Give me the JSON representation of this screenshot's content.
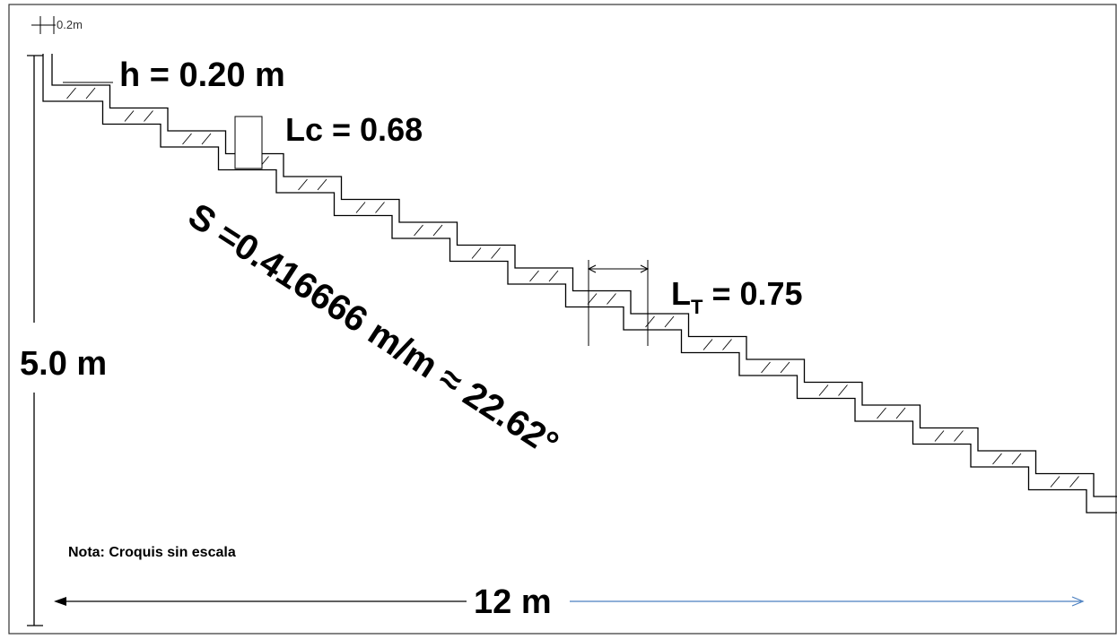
{
  "labels": {
    "top_dim": "0.2m",
    "riser": "h = 0.20 m",
    "lc": "Lc = 0.68",
    "lt_main": "L",
    "lt_sub": "T",
    "lt_value": " = 0.75",
    "slope": "S =0.416666 m/m ≈ 22.62°",
    "height": "5.0 m",
    "length": "12 m",
    "note": "Nota:  Croquis sin escala"
  },
  "colors": {
    "line": "#000000",
    "arrow_right": "#4a7fc0",
    "hatch": "#000000",
    "frame": "#333333"
  }
}
